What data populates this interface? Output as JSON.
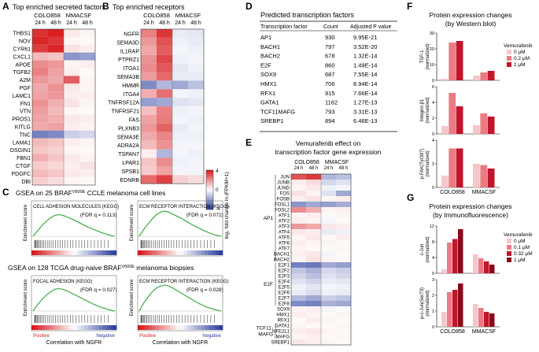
{
  "colors": {
    "heat_pos": "#d7191c",
    "heat_neg": "#2c3e9e",
    "gsea_line": "#4caf50",
    "bar_levels": [
      "#f7c6c9",
      "#ea7b84",
      "#c0152a",
      "#8b0a1a"
    ],
    "positive": "#d7191c",
    "negative": "#2c3e9e"
  },
  "panelA": {
    "letter": "A",
    "title": "Top enriched secreted factors",
    "groups": [
      "COLO858",
      "MMACSF"
    ],
    "times": [
      "24 h",
      "48 h",
      "24 h",
      "48 h"
    ],
    "genes": [
      "THBS1",
      "NOV",
      "CYR61",
      "CXCL1",
      "APOE",
      "TGFB2",
      "A2M",
      "PGF",
      "LAMC1",
      "FN1",
      "VTN",
      "PROS1",
      "KITLG",
      "TNC",
      "LAMA1",
      "OSGIN1",
      "FBN1",
      "CTGF",
      "PDGFC",
      "DBI"
    ],
    "values": [
      [
        3.6,
        3.9,
        0.4,
        0.2
      ],
      [
        3.8,
        3.5,
        0.2,
        0.1
      ],
      [
        3.4,
        3.8,
        0.5,
        0.3
      ],
      [
        1.2,
        1.0,
        -2.2,
        -2.0
      ],
      [
        2.0,
        1.8,
        0.2,
        0.3
      ],
      [
        2.2,
        1.6,
        0.3,
        0.1
      ],
      [
        1.8,
        1.5,
        2.8,
        0.2
      ],
      [
        1.5,
        1.9,
        0.4,
        0.2
      ],
      [
        1.6,
        1.8,
        0.3,
        0.3
      ],
      [
        1.9,
        1.4,
        0.5,
        0.2
      ],
      [
        1.7,
        1.2,
        0.2,
        0.1
      ],
      [
        1.6,
        1.4,
        0.4,
        0.3
      ],
      [
        1.5,
        1.6,
        0.3,
        0.2
      ],
      [
        -2.6,
        -2.4,
        -1.0,
        -0.8
      ],
      [
        1.2,
        1.0,
        0.3,
        0.2
      ],
      [
        1.0,
        0.8,
        0.2,
        0.1
      ],
      [
        1.4,
        1.0,
        0.4,
        0.2
      ],
      [
        0.9,
        0.7,
        0.3,
        0.5
      ],
      [
        1.2,
        1.0,
        0.4,
        0.3
      ],
      [
        0.8,
        0.6,
        0.2,
        0.1
      ]
    ]
  },
  "panelB": {
    "letter": "B",
    "title": "Top enriched receptors",
    "groups": [
      "COLO858",
      "MMACSF"
    ],
    "times": [
      "24 h",
      "48 h",
      "24 h",
      "48 h"
    ],
    "genes": [
      "NGFR",
      "SEMA3D",
      "IL1RAP",
      "PTPRZ1",
      "ITGA1",
      "SEMA3B",
      "HMMR",
      "ITGA4",
      "TNFRSF12A",
      "TNFRSF21",
      "FAS",
      "PLXNB3",
      "SEMA3E",
      "ADRA2A",
      "TSPAN7",
      "LPAR1",
      "SPSB1",
      "EDNRB"
    ],
    "values": [
      [
        2.2,
        3.5,
        -0.4,
        -0.5
      ],
      [
        1.8,
        3.0,
        -0.3,
        -0.4
      ],
      [
        1.5,
        2.8,
        -0.2,
        -0.3
      ],
      [
        1.9,
        3.2,
        -0.3,
        -0.2
      ],
      [
        2.0,
        2.9,
        -0.5,
        -0.3
      ],
      [
        1.7,
        2.6,
        -0.4,
        -0.4
      ],
      [
        -2.4,
        -1.5,
        -1.8,
        -1.3
      ],
      [
        1.4,
        2.5,
        -0.2,
        -0.3
      ],
      [
        -2.0,
        -1.8,
        -0.6,
        -0.5
      ],
      [
        1.1,
        2.2,
        -0.3,
        -0.2
      ],
      [
        1.6,
        2.3,
        -0.2,
        -0.3
      ],
      [
        1.8,
        2.7,
        -0.4,
        -0.2
      ],
      [
        1.5,
        2.1,
        -0.3,
        -0.3
      ],
      [
        1.2,
        1.9,
        -0.2,
        -0.2
      ],
      [
        0.3,
        -1.5,
        -0.2,
        -0.3
      ],
      [
        1.0,
        2.0,
        -0.3,
        -0.2
      ],
      [
        0.9,
        1.6,
        -0.2,
        -0.2
      ],
      [
        2.6,
        3.3,
        0.8,
        0.6
      ]
    ],
    "colorbar_label": "log₂ fold change in (FPKM+1)",
    "colorbar_ticks": [
      "4",
      "0",
      "-4"
    ]
  },
  "panelC": {
    "letter": "C",
    "title_top_pre": "GSEA on 25 BRAF",
    "title_top_sup": "V600E",
    "title_top_post": " CCLE melanoma cell lines",
    "title_bottom_pre": "GSEA on 128 TCGA drug-naive BRAF",
    "title_bottom_sup": "V600E",
    "title_bottom_post": " melanoma biopsies",
    "ylabel": "Enrichment score",
    "xlabel": "Correlation with NGFR",
    "positive_label": "Positive",
    "negative_label": "Negative",
    "plots": [
      {
        "name": "CELL ADHESION MOLECULES (KEGG)",
        "fdr": "(FDR q = 0.113)",
        "es": [
          0,
          0.12,
          0.24,
          0.34,
          0.42,
          0.48,
          0.5,
          0.48,
          0.44,
          0.4,
          0.35,
          0.3,
          0.25,
          0.2,
          0.16,
          0.12,
          0.08,
          0.05,
          0.02,
          0
        ]
      },
      {
        "name": "ECM RECEPTOR INTERACTION (KEGG)",
        "fdr": "(FDR q = 0.072)",
        "es": [
          0,
          0.15,
          0.28,
          0.4,
          0.5,
          0.56,
          0.58,
          0.55,
          0.5,
          0.45,
          0.4,
          0.34,
          0.28,
          0.23,
          0.18,
          0.13,
          0.09,
          0.05,
          0.02,
          0
        ]
      },
      {
        "name": "FOCAL ADHESION (KEGG)",
        "fdr": "(FDR q = 0.027)",
        "es": [
          0,
          0.14,
          0.26,
          0.36,
          0.44,
          0.5,
          0.52,
          0.5,
          0.46,
          0.41,
          0.36,
          0.31,
          0.26,
          0.21,
          0.16,
          0.12,
          0.08,
          0.05,
          0.02,
          0
        ]
      },
      {
        "name": "ECM RECEPTOR INTERACTION (KEGG)",
        "fdr": "(FDR q = 0.028)",
        "es": [
          0,
          0.18,
          0.32,
          0.44,
          0.53,
          0.58,
          0.6,
          0.57,
          0.52,
          0.46,
          0.4,
          0.34,
          0.28,
          0.22,
          0.17,
          0.12,
          0.08,
          0.05,
          0.02,
          0
        ]
      }
    ]
  },
  "panelD": {
    "letter": "D",
    "title": "Predicted transcription factors",
    "headers": [
      "Transcription factor",
      "Count",
      "Adjusted P value"
    ],
    "rows": [
      [
        "AP1",
        "930",
        "9.95E-21"
      ],
      [
        "BACH1",
        "797",
        "3.52E-20"
      ],
      [
        "BACH2",
        "678",
        "1.32E-14"
      ],
      [
        "E2F",
        "860",
        "1.49E-14"
      ],
      [
        "SOX9",
        "687",
        "7.55E-14"
      ],
      [
        "HMX1",
        "706",
        "8.94E-14"
      ],
      [
        "RFX1",
        "915",
        "7.66E-14"
      ],
      [
        "GATA1",
        "1162",
        "1.27E-13"
      ],
      [
        "TCF11MAFG",
        "793",
        "3.31E-13"
      ],
      [
        "SREBP1",
        "894",
        "6.46E-13"
      ]
    ]
  },
  "panelE": {
    "letter": "E",
    "title_line1": "Vemurafenib effect on",
    "title_line2": "transcription factor gene expression",
    "groups": [
      "COLO858",
      "MMACSF"
    ],
    "times": [
      "24 h",
      "48 h",
      "24 h",
      "48 h"
    ],
    "genes": [
      "JUN",
      "JUNB",
      "JUND",
      "FOS",
      "FOSB",
      "FOSL1",
      "FOSL2",
      "ATF1",
      "ATF2",
      "ATF3",
      "ATF4",
      "ATF5",
      "ATF6",
      "ATF7",
      "BACH1",
      "BACH2",
      "E2F1",
      "E2F2",
      "E2F3",
      "E2F4",
      "E2F5",
      "E2F6",
      "E2F7",
      "E2F8",
      "SOX9",
      "HMX1",
      "RFX1",
      "GATA1",
      "NFE2L1",
      "MAFG",
      "SREBP1"
    ],
    "families": [
      {
        "label": "AP1",
        "start": 0,
        "end": 15
      },
      {
        "label": "E2F",
        "start": 16,
        "end": 23
      },
      {
        "label": "TCF11-\nMAFG",
        "start": 27,
        "end": 29
      }
    ],
    "values": [
      [
        3.0,
        3.4,
        -1.5,
        -1.3
      ],
      [
        0.3,
        0.6,
        -0.8,
        -0.6
      ],
      [
        0.2,
        0.4,
        -0.3,
        -0.2
      ],
      [
        0.5,
        0.2,
        -0.6,
        -1.8
      ],
      [
        0.3,
        0.5,
        0.2,
        0.3
      ],
      [
        -2.2,
        -1.8,
        -2.0,
        -1.7
      ],
      [
        2.0,
        1.4,
        0.2,
        0.3
      ],
      [
        0.2,
        0.3,
        0.1,
        0.2
      ],
      [
        0.3,
        0.2,
        -0.2,
        0.1
      ],
      [
        1.8,
        1.5,
        0.4,
        0.3
      ],
      [
        0.4,
        0.3,
        -0.4,
        -0.3
      ],
      [
        0.2,
        0.4,
        0.1,
        0.3
      ],
      [
        0.3,
        0.2,
        0.2,
        0.1
      ],
      [
        0.2,
        0.1,
        0.1,
        0.2
      ],
      [
        0.3,
        0.4,
        -0.2,
        0.1
      ],
      [
        0.2,
        0.5,
        0.2,
        0.1
      ],
      [
        -2.6,
        -2.8,
        -1.8,
        -2.0
      ],
      [
        -1.2,
        -1.6,
        -0.8,
        -1.0
      ],
      [
        -0.9,
        -1.3,
        -0.6,
        -0.8
      ],
      [
        -0.6,
        -0.9,
        -0.4,
        -0.5
      ],
      [
        -0.3,
        -0.5,
        -0.2,
        -0.3
      ],
      [
        -0.4,
        -0.7,
        -0.3,
        -0.4
      ],
      [
        -1.4,
        -1.8,
        -1.0,
        -1.2
      ],
      [
        -2.4,
        -2.6,
        -1.6,
        -1.8
      ],
      [
        0.2,
        0.3,
        -0.2,
        -0.1
      ],
      [
        0.3,
        0.2,
        0.1,
        0.2
      ],
      [
        0.1,
        0.3,
        0.2,
        0.1
      ],
      [
        0.2,
        0.1,
        0.1,
        0.2
      ],
      [
        0.3,
        0.4,
        0.2,
        0.1
      ],
      [
        0.2,
        0.3,
        0.1,
        0.2
      ],
      [
        0.4,
        0.3,
        0.2,
        0.1
      ]
    ]
  },
  "panelF": {
    "letter": "F",
    "title_line1": "Protein expression changes",
    "title_line2": "(by Western blot)",
    "legend_title": "Vemurafenib",
    "levels": [
      "0 μM",
      "0.2 μM",
      "1 μM"
    ],
    "groups": [
      "COLO858",
      "MMACSF"
    ],
    "subplots": [
      {
        "ylabel": "TSP-1",
        "ylabel2": "(normalized)",
        "ymax": 30,
        "ticks": [
          "0",
          "10",
          "20",
          "30"
        ],
        "values": [
          [
            1,
            24,
            25
          ],
          [
            3,
            5,
            6
          ]
        ]
      },
      {
        "ylabel": "Integrin β1",
        "ylabel2": "(normalized)",
        "ymax": 6,
        "ticks": [
          "0",
          "2",
          "4",
          "6"
        ],
        "values": [
          [
            1,
            5.2,
            3.5
          ],
          [
            1.1,
            2.6,
            2.2
          ]
        ]
      },
      {
        "ylabel": "p-FAK(Tyr397)",
        "ylabel2": "(normalized)",
        "ymax": 4,
        "ticks": [
          "0",
          "2",
          "4"
        ],
        "values": [
          [
            1,
            3.3,
            3.3
          ],
          [
            2.0,
            1.9,
            1.6
          ]
        ]
      }
    ]
  },
  "panelG": {
    "letter": "G",
    "title_line1": "Protein expression changes",
    "title_line2": "(by Immunofluorescence)",
    "legend_title": "Vemurafenib",
    "levels": [
      "0 μM",
      "0.1 μM",
      "0.32 μM",
      "1 μM"
    ],
    "groups": [
      "COLO858",
      "MMACSF"
    ],
    "subplots": [
      {
        "ylabel": "c-Jun",
        "ylabel2": "(normalized)",
        "ymax": 12,
        "ticks": [
          "0",
          "4",
          "8",
          "12"
        ],
        "values": [
          [
            1,
            7.8,
            8.7,
            11.2
          ],
          [
            4.8,
            3.8,
            3.0,
            2.2
          ]
        ]
      },
      {
        "ylabel": "p-c-Jun(Ser73)",
        "ylabel2": "(normalized)",
        "ymax": 3,
        "ticks": [
          "0",
          "1",
          "2",
          "3"
        ],
        "values": [
          [
            0.95,
            2.2,
            2.35,
            2.75
          ],
          [
            1.45,
            1.2,
            0.95,
            0.85
          ]
        ]
      }
    ]
  }
}
